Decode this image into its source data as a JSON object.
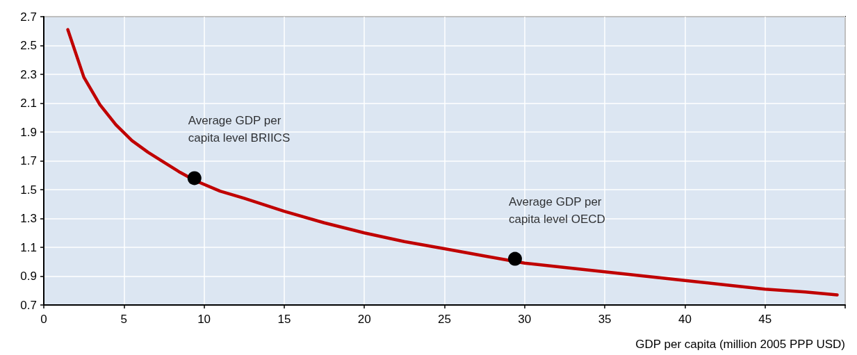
{
  "chart_data": {
    "type": "line",
    "xlabel": "GDP per capita (million 2005 PPP USD)",
    "xlim": [
      0,
      50
    ],
    "xticks": [
      0,
      5,
      10,
      15,
      20,
      25,
      30,
      35,
      40,
      45,
      {
        "value": 50,
        "label": null
      }
    ],
    "ylim": [
      0.7,
      2.7
    ],
    "yticks": [
      0.7,
      0.9,
      1.1,
      1.3,
      1.5,
      1.7,
      1.9,
      2.1,
      2.3,
      2.5,
      2.7
    ],
    "grid": true,
    "series": [
      {
        "color": "#c00000",
        "marker": "none",
        "line_style": "solid",
        "x": [
          1.5,
          2.5,
          3.5,
          4.5,
          5.5,
          6.5,
          7.5,
          8.5,
          9.5,
          11,
          12.5,
          15,
          17.5,
          20,
          22.5,
          25,
          27.5,
          30,
          32.5,
          35,
          37.5,
          40,
          42.5,
          45,
          47.5,
          49.5
        ],
        "values": [
          2.61,
          2.28,
          2.09,
          1.95,
          1.84,
          1.76,
          1.69,
          1.62,
          1.56,
          1.49,
          1.44,
          1.35,
          1.27,
          1.2,
          1.14,
          1.09,
          1.04,
          0.99,
          0.96,
          0.93,
          0.9,
          0.87,
          0.84,
          0.81,
          0.79,
          0.77
        ]
      },
      {
        "type": "scatter",
        "color": "#000000",
        "marker": "circle",
        "x": [
          9.4,
          29.4
        ],
        "values": [
          1.58,
          1.02
        ]
      }
    ],
    "annotations": [
      {
        "text": "Average GDP per\ncapita level BRIICS",
        "x": 9.4,
        "y": 1.58
      },
      {
        "text": "Average GDP per\ncapita level OECD",
        "x": 29.4,
        "y": 1.02
      }
    ]
  }
}
